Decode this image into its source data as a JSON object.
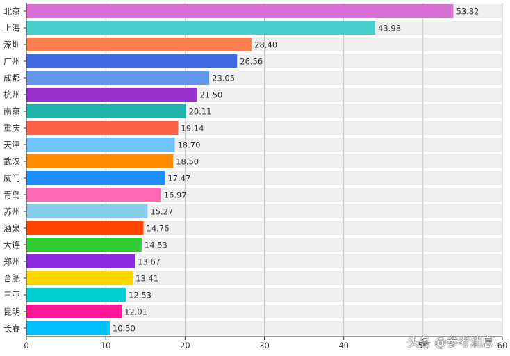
{
  "chart_data": {
    "type": "bar",
    "orientation": "horizontal",
    "categories": [
      "北京",
      "上海",
      "深圳",
      "广州",
      "成都",
      "杭州",
      "南京",
      "重庆",
      "天津",
      "武汉",
      "厦门",
      "青岛",
      "苏州",
      "酒泉",
      "大连",
      "郑州",
      "合肥",
      "三亚",
      "昆明",
      "长春"
    ],
    "values": [
      53.82,
      43.98,
      28.4,
      26.56,
      23.05,
      21.5,
      20.11,
      19.14,
      18.7,
      18.5,
      17.47,
      16.97,
      15.27,
      14.76,
      14.53,
      13.67,
      13.41,
      12.53,
      12.01,
      10.5
    ],
    "value_labels": [
      "53.82",
      "43.98",
      "28.40",
      "26.56",
      "23.05",
      "21.50",
      "20.11",
      "19.14",
      "18.70",
      "18.50",
      "17.47",
      "16.97",
      "15.27",
      "14.76",
      "14.53",
      "13.67",
      "13.41",
      "12.53",
      "12.01",
      "10.50"
    ],
    "colors": [
      "#DA70D6",
      "#48D1CC",
      "#FF7F50",
      "#4169E1",
      "#6495ED",
      "#9932CC",
      "#20B2AA",
      "#FF6347",
      "#6FC3FF",
      "#FF8C00",
      "#1E90FF",
      "#FF69B4",
      "#87CEEB",
      "#FF4500",
      "#32CD32",
      "#8A2BE2",
      "#FFD700",
      "#00CED1",
      "#FF1493",
      "#00BFFF"
    ],
    "xlim": [
      0,
      60
    ],
    "xticks": [
      "0",
      "10",
      "20",
      "30",
      "40",
      "50",
      "60"
    ],
    "grid": true,
    "title": "",
    "xlabel": "",
    "ylabel": ""
  },
  "watermark": "头条 @参考消息"
}
